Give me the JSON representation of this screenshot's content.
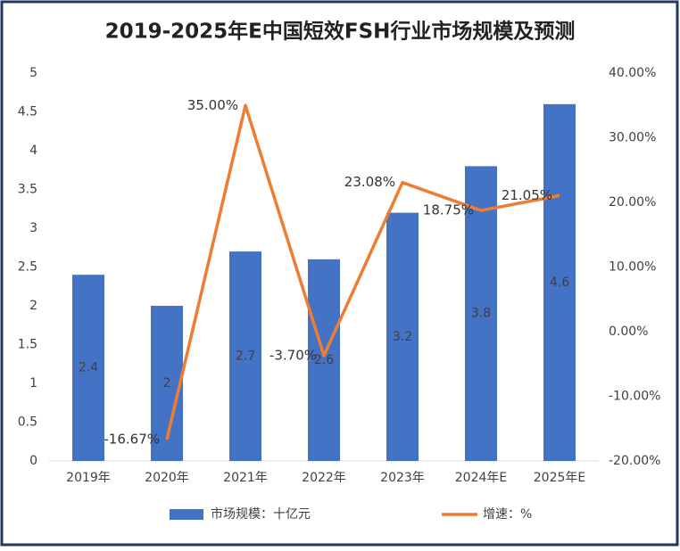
{
  "chart_data": {
    "type": "bar_line",
    "title": "2019-2025年E中国短效FSH行业市场规模及预测",
    "categories": [
      "2019年",
      "2020年",
      "2021年",
      "2022年",
      "2023年",
      "2024年E",
      "2025年E"
    ],
    "series": [
      {
        "name": "市场规模：十亿元",
        "type": "bar",
        "color": "#4472c4",
        "values": [
          2.4,
          2,
          2.7,
          2.6,
          3.2,
          3.8,
          4.6
        ]
      },
      {
        "name": "增速：%",
        "type": "line",
        "axis": "y2",
        "color": "#ed7d31",
        "values": [
          null,
          -16.67,
          35.0,
          -3.7,
          23.08,
          18.75,
          21.05
        ],
        "value_labels": [
          null,
          "-16.67%",
          "35.00%",
          "-3.70%",
          "23.08%",
          "18.75%",
          "21.05%"
        ]
      }
    ],
    "ylim": [
      0,
      5
    ],
    "yticks": [
      0,
      0.5,
      1,
      1.5,
      2,
      2.5,
      3,
      3.5,
      4,
      4.5,
      5
    ],
    "y2lim": [
      -20,
      40
    ],
    "y2ticks": [
      {
        "value": -20,
        "label": "-20.00%"
      },
      {
        "value": -10,
        "label": "-10.00%"
      },
      {
        "value": 0,
        "label": "0.00%"
      },
      {
        "value": 10,
        "label": "10.00%"
      },
      {
        "value": 20,
        "label": "20.00%"
      },
      {
        "value": 30,
        "label": "30.00%"
      },
      {
        "value": 40,
        "label": "40.00%"
      }
    ],
    "grid": false,
    "legend": "bottom"
  }
}
